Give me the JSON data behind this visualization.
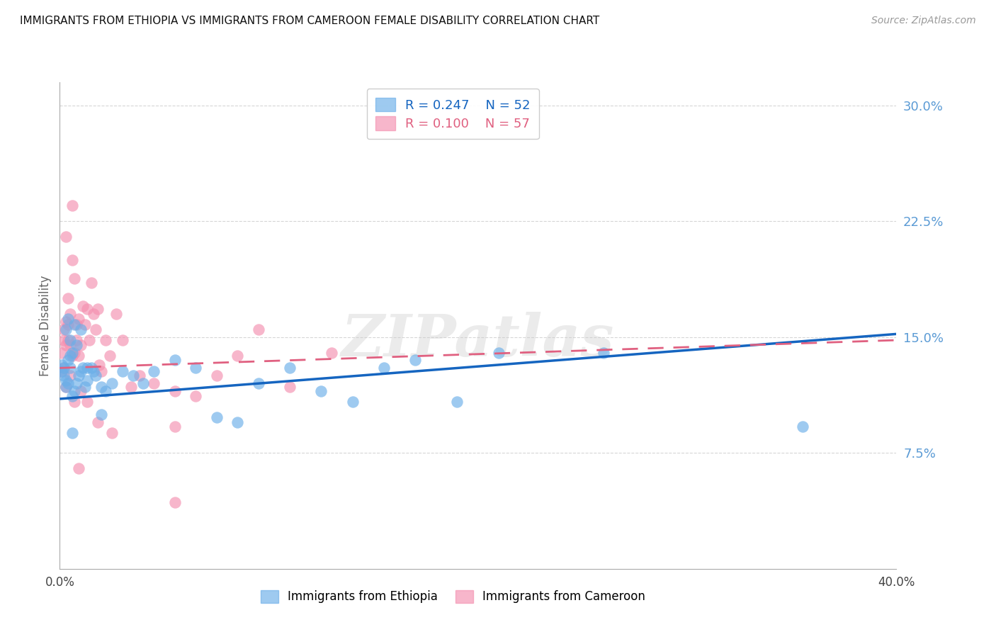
{
  "title": "IMMIGRANTS FROM ETHIOPIA VS IMMIGRANTS FROM CAMEROON FEMALE DISABILITY CORRELATION CHART",
  "source": "Source: ZipAtlas.com",
  "ylabel": "Female Disability",
  "xlim": [
    0.0,
    0.4
  ],
  "ylim": [
    0.0,
    0.315
  ],
  "yticks": [
    0.075,
    0.15,
    0.225,
    0.3
  ],
  "ytick_labels": [
    "7.5%",
    "15.0%",
    "22.5%",
    "30.0%"
  ],
  "xtick_positions": [
    0.0,
    0.05,
    0.1,
    0.15,
    0.2,
    0.25,
    0.3,
    0.35,
    0.4
  ],
  "xtick_labels": [
    "0.0%",
    "",
    "",
    "",
    "",
    "",
    "",
    "",
    "40.0%"
  ],
  "legend_r_ethiopia": "R = 0.247",
  "legend_n_ethiopia": "N = 52",
  "legend_r_cameroon": "R = 0.100",
  "legend_n_cameroon": "N = 57",
  "legend_label_ethiopia": "Immigrants from Ethiopia",
  "legend_label_cameroon": "Immigrants from Cameroon",
  "ethiopia_color": "#6aaee8",
  "cameroon_color": "#f48faf",
  "ethiopia_line_color": "#1565c0",
  "cameroon_line_color": "#e06080",
  "watermark": "ZIPatlas",
  "ethiopia_x": [
    0.001,
    0.001,
    0.002,
    0.002,
    0.003,
    0.003,
    0.004,
    0.004,
    0.005,
    0.005,
    0.006,
    0.006,
    0.007,
    0.008,
    0.009,
    0.01,
    0.011,
    0.012,
    0.013,
    0.015,
    0.017,
    0.02,
    0.022,
    0.025,
    0.03,
    0.035,
    0.04,
    0.045,
    0.055,
    0.065,
    0.075,
    0.085,
    0.095,
    0.11,
    0.125,
    0.14,
    0.155,
    0.17,
    0.19,
    0.21,
    0.003,
    0.004,
    0.005,
    0.007,
    0.008,
    0.01,
    0.013,
    0.016,
    0.02,
    0.26,
    0.355,
    0.006
  ],
  "ethiopia_y": [
    0.128,
    0.132,
    0.125,
    0.13,
    0.122,
    0.118,
    0.12,
    0.135,
    0.13,
    0.138,
    0.112,
    0.14,
    0.115,
    0.12,
    0.125,
    0.128,
    0.13,
    0.118,
    0.122,
    0.13,
    0.125,
    0.118,
    0.115,
    0.12,
    0.128,
    0.125,
    0.12,
    0.128,
    0.135,
    0.13,
    0.098,
    0.095,
    0.12,
    0.13,
    0.115,
    0.108,
    0.13,
    0.135,
    0.108,
    0.14,
    0.155,
    0.162,
    0.148,
    0.158,
    0.145,
    0.155,
    0.13,
    0.128,
    0.1,
    0.14,
    0.092,
    0.088
  ],
  "cameroon_x": [
    0.001,
    0.001,
    0.002,
    0.002,
    0.002,
    0.003,
    0.003,
    0.003,
    0.004,
    0.004,
    0.005,
    0.005,
    0.006,
    0.006,
    0.007,
    0.007,
    0.008,
    0.008,
    0.009,
    0.009,
    0.01,
    0.011,
    0.012,
    0.013,
    0.014,
    0.015,
    0.016,
    0.017,
    0.018,
    0.019,
    0.02,
    0.022,
    0.024,
    0.027,
    0.03,
    0.034,
    0.038,
    0.045,
    0.055,
    0.065,
    0.075,
    0.085,
    0.095,
    0.11,
    0.13,
    0.004,
    0.005,
    0.007,
    0.01,
    0.013,
    0.018,
    0.025,
    0.055,
    0.003,
    0.006,
    0.009,
    0.055
  ],
  "cameroon_y": [
    0.128,
    0.14,
    0.13,
    0.148,
    0.155,
    0.145,
    0.16,
    0.118,
    0.158,
    0.148,
    0.165,
    0.145,
    0.2,
    0.138,
    0.188,
    0.14,
    0.158,
    0.148,
    0.162,
    0.138,
    0.145,
    0.17,
    0.158,
    0.168,
    0.148,
    0.185,
    0.165,
    0.155,
    0.168,
    0.132,
    0.128,
    0.148,
    0.138,
    0.165,
    0.148,
    0.118,
    0.125,
    0.12,
    0.115,
    0.112,
    0.125,
    0.138,
    0.155,
    0.118,
    0.14,
    0.175,
    0.125,
    0.108,
    0.115,
    0.108,
    0.095,
    0.088,
    0.092,
    0.215,
    0.235,
    0.065,
    0.043
  ],
  "eth_trend_x": [
    0.0,
    0.4
  ],
  "eth_trend_y": [
    0.11,
    0.152
  ],
  "cam_trend_x": [
    0.0,
    0.4
  ],
  "cam_trend_y": [
    0.13,
    0.148
  ]
}
